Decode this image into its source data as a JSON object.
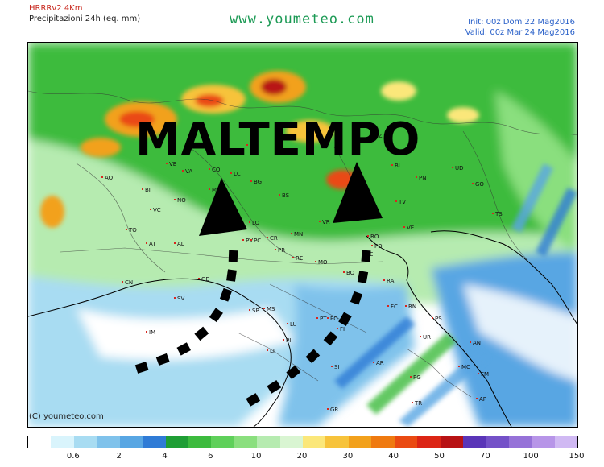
{
  "header": {
    "model": "HRRRv2 4Km",
    "product": "Precipitazioni 24h (eq. mm)",
    "site": "www.youmeteo.com",
    "init": "Init: 00z Dom 22 Mag2016",
    "valid": "Valid: 00z Mar 24 Mag2016"
  },
  "map": {
    "overlay_text": "MALTEMPO",
    "copyright": "(C) youmeteo.com",
    "labels": [
      "AO",
      "BI",
      "VC",
      "NO",
      "VB",
      "VA",
      "CO",
      "LC",
      "SO",
      "BG",
      "BS",
      "MB",
      "MI",
      "LO",
      "TO",
      "AT",
      "AL",
      "CN",
      "SV",
      "IM",
      "GE",
      "SP",
      "MS",
      "PV",
      "PC",
      "PR",
      "RE",
      "MO",
      "BO",
      "FE",
      "RO",
      "RA",
      "FC",
      "RN",
      "PS",
      "UR",
      "AN",
      "MC",
      "FM",
      "AP",
      "LU",
      "PT",
      "PO",
      "FI",
      "PI",
      "LI",
      "SI",
      "AR",
      "PG",
      "GR",
      "TR",
      "VR",
      "VI",
      "TV",
      "BL",
      "TN",
      "BZ",
      "PN",
      "UD",
      "GO",
      "TS",
      "VE",
      "PD",
      "MN",
      "CR"
    ],
    "arrows": 2
  },
  "legend": {
    "colors": [
      "#ffffff",
      "#d9f4fc",
      "#a8dcf2",
      "#7fc2eb",
      "#58a6e3",
      "#2f7bd6",
      "#1f9e35",
      "#3dbb3e",
      "#5fd05a",
      "#8adf7e",
      "#b6ebb0",
      "#d9f5d2",
      "#fbe77a",
      "#f7c33b",
      "#f2a11c",
      "#ef7a10",
      "#ea4a12",
      "#dc2515",
      "#b81214",
      "#5a35b8",
      "#7451c8",
      "#9672d8",
      "#b795e8",
      "#d0b9f3"
    ],
    "labels": [
      "0.6",
      "2",
      "4",
      "6",
      "10",
      "20",
      "30",
      "40",
      "50",
      "70",
      "100",
      "150"
    ]
  }
}
